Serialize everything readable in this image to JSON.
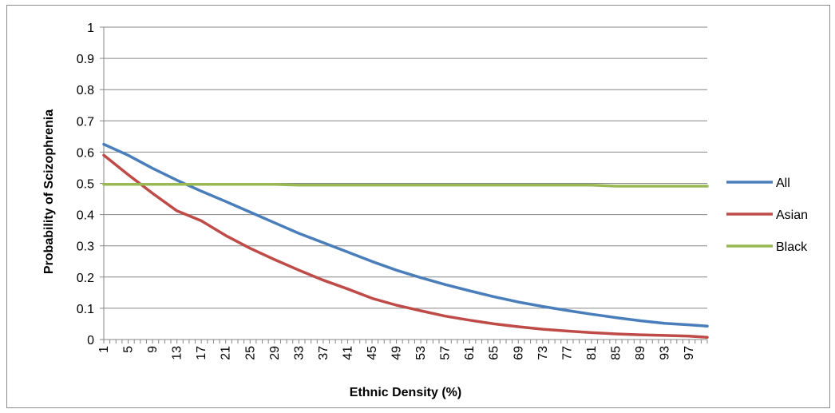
{
  "chart_data": {
    "type": "line",
    "xlabel": "Ethnic Density (%)",
    "ylabel": "Probability of Scizophrenia",
    "x_tick_labels": [
      "1",
      "5",
      "9",
      "13",
      "17",
      "21",
      "25",
      "29",
      "33",
      "37",
      "41",
      "45",
      "49",
      "53",
      "57",
      "61",
      "65",
      "69",
      "73",
      "77",
      "81",
      "85",
      "89",
      "93",
      "97"
    ],
    "y_tick_labels": [
      "0",
      "0.1",
      "0.2",
      "0.3",
      "0.4",
      "0.5",
      "0.6",
      "0.7",
      "0.8",
      "0.9",
      "1"
    ],
    "xlim": [
      1,
      100
    ],
    "ylim": [
      0,
      1
    ],
    "grid": "horizontal",
    "legend_position": "right",
    "series": [
      {
        "name": "All",
        "color": "#4a7ebb",
        "x": [
          1,
          5,
          9,
          13,
          17,
          21,
          25,
          29,
          33,
          37,
          41,
          45,
          49,
          53,
          57,
          61,
          65,
          69,
          73,
          77,
          81,
          85,
          89,
          93,
          97,
          100
        ],
        "y": [
          0.625,
          0.59,
          0.548,
          0.51,
          0.475,
          0.442,
          0.408,
          0.374,
          0.34,
          0.31,
          0.28,
          0.25,
          0.222,
          0.198,
          0.176,
          0.156,
          0.137,
          0.12,
          0.106,
          0.093,
          0.081,
          0.07,
          0.06,
          0.052,
          0.047,
          0.043
        ]
      },
      {
        "name": "Asian",
        "color": "#be4b48",
        "x": [
          1,
          5,
          9,
          13,
          17,
          21,
          25,
          29,
          33,
          37,
          41,
          45,
          49,
          53,
          57,
          61,
          65,
          69,
          73,
          77,
          81,
          85,
          89,
          93,
          97,
          100
        ],
        "y": [
          0.59,
          0.528,
          0.468,
          0.412,
          0.38,
          0.333,
          0.292,
          0.256,
          0.222,
          0.19,
          0.162,
          0.132,
          0.11,
          0.092,
          0.075,
          0.062,
          0.05,
          0.041,
          0.033,
          0.027,
          0.022,
          0.018,
          0.015,
          0.013,
          0.011,
          0.007
        ]
      },
      {
        "name": "Black",
        "color": "#98b954",
        "x": [
          1,
          5,
          9,
          13,
          17,
          21,
          25,
          29,
          33,
          37,
          41,
          45,
          49,
          53,
          57,
          61,
          65,
          69,
          73,
          77,
          81,
          85,
          89,
          93,
          97,
          100
        ],
        "y": [
          0.497,
          0.497,
          0.497,
          0.497,
          0.497,
          0.497,
          0.497,
          0.497,
          0.494,
          0.494,
          0.494,
          0.494,
          0.494,
          0.494,
          0.494,
          0.494,
          0.494,
          0.494,
          0.494,
          0.494,
          0.494,
          0.491,
          0.491,
          0.491,
          0.491,
          0.491
        ]
      }
    ]
  }
}
